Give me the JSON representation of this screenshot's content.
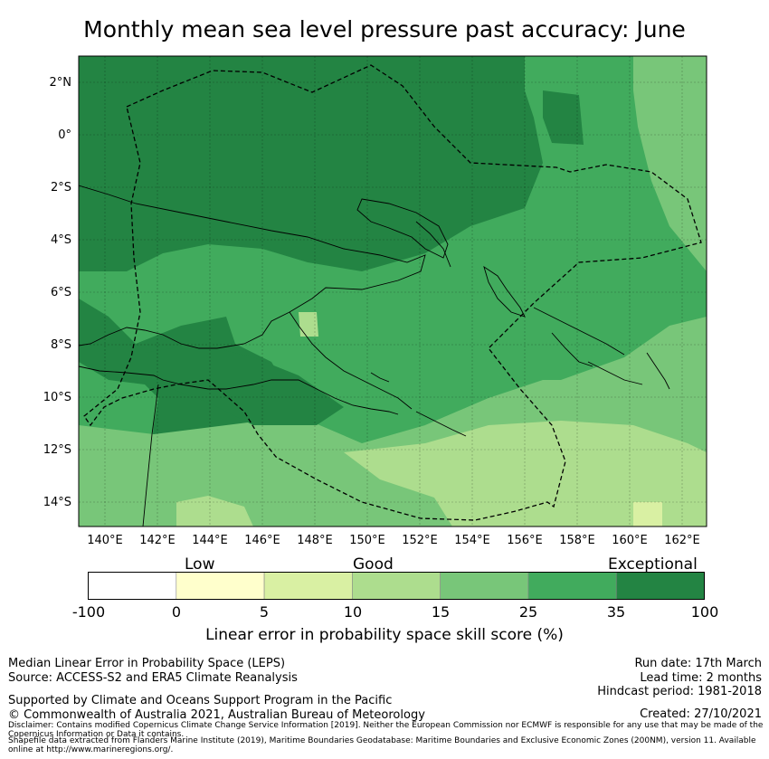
{
  "title": "Monthly mean sea level pressure past accuracy: June",
  "map": {
    "lat_ticks": [
      "2°N",
      "0°",
      "2°S",
      "4°S",
      "6°S",
      "8°S",
      "10°S",
      "12°S",
      "14°S"
    ],
    "lon_ticks": [
      "140°E",
      "142°E",
      "144°E",
      "146°E",
      "148°E",
      "150°E",
      "152°E",
      "154°E",
      "156°E",
      "158°E",
      "160°E",
      "162°E"
    ],
    "lon_range": [
      139.0,
      163.0
    ],
    "lat_range": [
      -15.0,
      3.0
    ]
  },
  "legend": {
    "categories": [
      "Low",
      "Good",
      "Exceptional"
    ],
    "ticks": [
      "-100",
      "0",
      "5",
      "10",
      "15",
      "25",
      "35",
      "100"
    ],
    "colors": [
      "#ffffff",
      "#ffffcc",
      "#d9f0a3",
      "#addd8e",
      "#78c679",
      "#41ab5d",
      "#238443"
    ],
    "label": "Linear error in probability space skill score (%)"
  },
  "footer": {
    "left_line1": "Median Linear Error in Probability Space (LEPS)",
    "left_line2": "Source: ACCESS-S2 and ERA5 Climate Reanalysis",
    "support": "Supported by Climate and Oceans Support Program in the Pacific",
    "copyright": "© Commonwealth of Australia 2021, Australian Bureau of Meteorology",
    "disclaimer": "Disclaimer: Contains modified Copernicus Climate Change Service Information [2019]. Neither the European Commission nor ECMWF is responsible for any use that may be made of the Copernicus Information or Data it contains.",
    "shapefile": "Shapefile data extracted from Flanders Marine Institute (2019), Maritime Boundaries Geodatabase: Maritime Boundaries and Exclusive Economic Zones (200NM), version 11. Available online at http://www.marineregions.org/.",
    "run_date": "Run date: 17th March",
    "lead_time": "Lead time: 2 months",
    "hindcast": "Hindcast period: 1981-2018",
    "created": "Created: 27/10/2021"
  }
}
